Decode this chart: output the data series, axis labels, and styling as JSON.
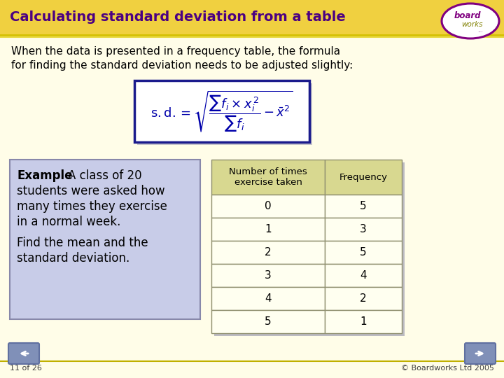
{
  "title": "Calculating standard deviation from a table",
  "title_bg_light": "#FFF8C0",
  "title_bg_gold": "#F0D040",
  "title_color": "#4B0082",
  "bg_color": "#FFFDE8",
  "body_text1": "When the data is presented in a frequency table, the formula",
  "body_text2": "for finding the standard deviation needs to be adjusted slightly:",
  "body_color": "#000000",
  "formula_box_color": "#1a1a8c",
  "formula_fill": "#FFFFFF",
  "example_box_bg": "#c8cce8",
  "example_box_border": "#8888aa",
  "table_header_col1": "Number of times\nexercise taken",
  "table_header_col2": "Frequency",
  "table_header_bg": "#D8D890",
  "table_row_bg": "#FFFFF0",
  "table_border": "#909070",
  "table_data": [
    [
      0,
      5
    ],
    [
      1,
      3
    ],
    [
      2,
      5
    ],
    [
      3,
      4
    ],
    [
      4,
      2
    ],
    [
      5,
      1
    ]
  ],
  "footer_text": "11 of 26",
  "footer_right": "© Boardworks Ltd 2005",
  "nav_color": "#8090b8",
  "nav_border": "#6070a0"
}
